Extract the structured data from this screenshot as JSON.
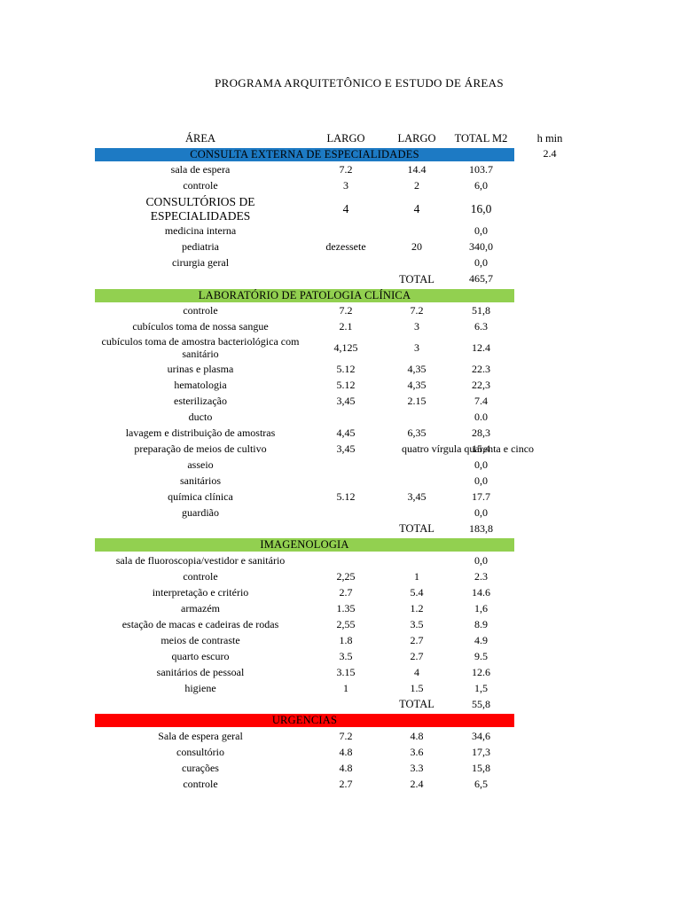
{
  "page": {
    "title": "PROGRAMA ARQUITETÔNICO E ESTUDO DE ÁREAS"
  },
  "table": {
    "headers": {
      "area": "ÁREA",
      "largo1": "LARGO",
      "largo2": "LARGO",
      "total": "TOTAL M2",
      "hmin": "h min"
    },
    "total_label": "TOTAL",
    "sections": [
      {
        "name": "CONSULTA EXTERNA DE ESPECIALIDADES",
        "color": "#1d7ac4",
        "h_min": "2.4",
        "rows": [
          {
            "area": "sala de espera",
            "l1": "7.2",
            "l2": "14.4",
            "total": "103.7"
          },
          {
            "area": "controle",
            "l1": "3",
            "l2": "2",
            "total": "6,0"
          },
          {
            "area": "CONSULTÓRIOS DE ESPECIALIDADES",
            "l1": "4",
            "l2": "4",
            "total": "16,0",
            "emph": true
          },
          {
            "area": "medicina interna",
            "l1": "",
            "l2": "",
            "total": "0,0"
          },
          {
            "area": "pediatria",
            "l1": "dezessete",
            "l2": "20",
            "total": "340,0"
          },
          {
            "area": "cirurgia geral",
            "l1": "",
            "l2": "",
            "total": "0,0"
          }
        ],
        "total": "465,7"
      },
      {
        "name": "LABORATÓRIO DE PATOLOGIA CLÍNICA",
        "color": "#92d050",
        "h_min": "",
        "rows": [
          {
            "area": "controle",
            "l1": "7.2",
            "l2": "7.2",
            "total": "51,8"
          },
          {
            "area": "cubículos toma de nossa sangue",
            "l1": "2.1",
            "l2": "3",
            "total": "6.3"
          },
          {
            "area": "cubículos toma de amostra bacteriológica com sanitário",
            "l1": "4,125",
            "l2": "3",
            "total": "12.4"
          },
          {
            "area": "urinas e plasma",
            "l1": "5.12",
            "l2": "4,35",
            "total": "22.3"
          },
          {
            "area": "hematologia",
            "l1": "5.12",
            "l2": "4,35",
            "total": "22,3"
          },
          {
            "area": "esterilização",
            "l1": "3,45",
            "l2": "2.15",
            "total": "7.4"
          },
          {
            "area": "ducto",
            "l1": "",
            "l2": "",
            "total": "0.0"
          },
          {
            "area": "lavagem e distribuição de amostras",
            "l1": "4,45",
            "l2": "6,35",
            "total": "28,3"
          },
          {
            "area": "preparação de meios de cultivo",
            "l1": "3,45",
            "l2": "quatro vírgula quarenta e cinco",
            "total": "15,4",
            "overflow": true
          },
          {
            "area": "asseio",
            "l1": "",
            "l2": "",
            "total": "0,0"
          },
          {
            "area": "sanitários",
            "l1": "",
            "l2": "",
            "total": "0,0"
          },
          {
            "area": "química clínica",
            "l1": "5.12",
            "l2": "3,45",
            "total": "17.7"
          },
          {
            "area": "guardião",
            "l1": "",
            "l2": "",
            "total": "0,0"
          }
        ],
        "total": "183,8"
      },
      {
        "name": "IMAGENOLOGIA",
        "color": "#92d050",
        "h_min": "",
        "rows": [
          {
            "area": "sala de fluoroscopia/vestidor e sanitário",
            "l1": "",
            "l2": "",
            "total": "0,0"
          },
          {
            "area": "controle",
            "l1": "2,25",
            "l2": "1",
            "total": "2.3"
          },
          {
            "area": "interpretação e critério",
            "l1": "2.7",
            "l2": "5.4",
            "total": "14.6"
          },
          {
            "area": "armazém",
            "l1": "1.35",
            "l2": "1.2",
            "total": "1,6"
          },
          {
            "area": "estação de macas e cadeiras de rodas",
            "l1": "2,55",
            "l2": "3.5",
            "total": "8.9"
          },
          {
            "area": "meios de contraste",
            "l1": "1.8",
            "l2": "2.7",
            "total": "4.9"
          },
          {
            "area": "quarto escuro",
            "l1": "3.5",
            "l2": "2.7",
            "total": "9.5"
          },
          {
            "area": "sanitários de pessoal",
            "l1": "3.15",
            "l2": "4",
            "total": "12.6"
          },
          {
            "area": "higiene",
            "l1": "1",
            "l2": "1.5",
            "total": "1,5"
          }
        ],
        "total": "55,8"
      },
      {
        "name": "URGENCIAS",
        "color": "#ff0000",
        "h_min": "",
        "rows": [
          {
            "area": "Sala de espera geral",
            "l1": "7.2",
            "l2": "4.8",
            "total": "34,6"
          },
          {
            "area": "consultório",
            "l1": "4.8",
            "l2": "3.6",
            "total": "17,3"
          },
          {
            "area": "curações",
            "l1": "4.8",
            "l2": "3.3",
            "total": "15,8"
          },
          {
            "area": "controle",
            "l1": "2.7",
            "l2": "2.4",
            "total": "6,5"
          }
        ],
        "total": ""
      }
    ]
  }
}
